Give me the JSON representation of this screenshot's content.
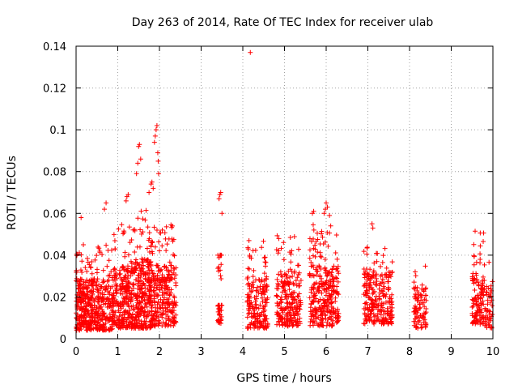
{
  "chart_data": {
    "type": "scatter",
    "title": "Day 263 of 2014, Rate Of TEC Index for receiver ulab",
    "xlabel": "GPS time / hours",
    "ylabel": "ROTI / TECUs",
    "xlim": [
      0,
      10
    ],
    "ylim": [
      0,
      0.14
    ],
    "xticks": [
      0,
      1,
      2,
      3,
      4,
      5,
      6,
      7,
      8,
      9,
      10
    ],
    "xtick_labels": [
      "0",
      "1",
      "2",
      "3",
      "4",
      "5",
      "6",
      "7",
      "8",
      "9",
      "10"
    ],
    "yticks": [
      0,
      0.02,
      0.04,
      0.06,
      0.08,
      0.1,
      0.12,
      0.14
    ],
    "ytick_labels": [
      "0",
      "0.02",
      "0.04",
      "0.06",
      "0.08",
      "0.1",
      "0.12",
      "0.14"
    ],
    "grid": true,
    "marker": "plus",
    "color": "#ff0000",
    "clusters": [
      {
        "x": [
          0.0,
          0.4
        ],
        "y": [
          0.004,
          0.046
        ],
        "n": 260,
        "mean": 0.018
      },
      {
        "x": [
          0.4,
          0.9
        ],
        "y": [
          0.004,
          0.045
        ],
        "n": 220,
        "mean": 0.018
      },
      {
        "x": [
          0.9,
          1.4
        ],
        "y": [
          0.005,
          0.055
        ],
        "n": 260,
        "mean": 0.022
      },
      {
        "x": [
          1.4,
          1.8
        ],
        "y": [
          0.005,
          0.062
        ],
        "n": 260,
        "mean": 0.024
      },
      {
        "x": [
          1.8,
          2.4
        ],
        "y": [
          0.006,
          0.055
        ],
        "n": 280,
        "mean": 0.022
      },
      {
        "x": [
          3.4,
          3.5
        ],
        "y": [
          0.007,
          0.016
        ],
        "n": 30,
        "mean": 0.011
      },
      {
        "x": [
          3.4,
          3.5
        ],
        "y": [
          0.028,
          0.04
        ],
        "n": 14,
        "mean": 0.034
      },
      {
        "x": [
          4.1,
          4.6
        ],
        "y": [
          0.005,
          0.047
        ],
        "n": 180,
        "mean": 0.018
      },
      {
        "x": [
          4.8,
          5.4
        ],
        "y": [
          0.006,
          0.052
        ],
        "n": 220,
        "mean": 0.02
      },
      {
        "x": [
          5.6,
          6.3
        ],
        "y": [
          0.006,
          0.055
        ],
        "n": 300,
        "mean": 0.022
      },
      {
        "x": [
          6.9,
          7.6
        ],
        "y": [
          0.007,
          0.045
        ],
        "n": 260,
        "mean": 0.02
      },
      {
        "x": [
          8.1,
          8.4
        ],
        "y": [
          0.005,
          0.036
        ],
        "n": 90,
        "mean": 0.016
      },
      {
        "x": [
          9.5,
          9.8
        ],
        "y": [
          0.007,
          0.052
        ],
        "n": 120,
        "mean": 0.02
      },
      {
        "x": [
          9.8,
          10.0
        ],
        "y": [
          0.005,
          0.04
        ],
        "n": 50,
        "mean": 0.016
      }
    ],
    "notable_points": [
      {
        "x": [
          0.12
        ],
        "y": [
          0.058
        ]
      },
      {
        "x": [
          0.68,
          0.72
        ],
        "y": [
          0.062,
          0.065
        ]
      },
      {
        "x": [
          1.2,
          1.22,
          1.25
        ],
        "y": [
          0.066,
          0.068,
          0.069
        ]
      },
      {
        "x": [
          1.45,
          1.48,
          1.5,
          1.52,
          1.55
        ],
        "y": [
          0.079,
          0.084,
          0.092,
          0.093,
          0.086
        ]
      },
      {
        "x": [
          1.75,
          1.8,
          1.82,
          1.85
        ],
        "y": [
          0.07,
          0.074,
          0.075,
          0.072
        ]
      },
      {
        "x": [
          1.88,
          1.9,
          1.92,
          1.94,
          1.96,
          1.97,
          1.98
        ],
        "y": [
          0.094,
          0.097,
          0.1,
          0.102,
          0.089,
          0.085,
          0.079
        ]
      },
      {
        "x": [
          3.43,
          3.45,
          3.47,
          3.5
        ],
        "y": [
          0.067,
          0.069,
          0.07,
          0.06
        ]
      },
      {
        "x": [
          4.18
        ],
        "y": [
          0.137
        ]
      },
      {
        "x": [
          5.67,
          5.7
        ],
        "y": [
          0.06,
          0.061
        ]
      },
      {
        "x": [
          5.95,
          5.98,
          6.0,
          6.03,
          6.08
        ],
        "y": [
          0.06,
          0.062,
          0.065,
          0.063,
          0.059
        ]
      },
      {
        "x": [
          7.1,
          7.12
        ],
        "y": [
          0.055,
          0.053
        ]
      }
    ]
  }
}
